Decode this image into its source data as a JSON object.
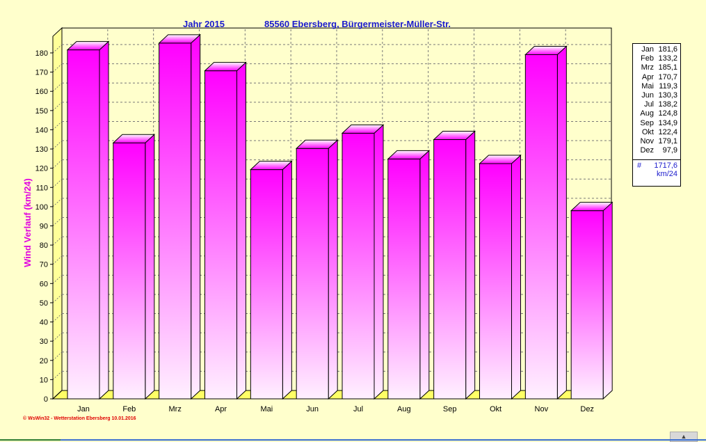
{
  "header": {
    "year_label": "Jahr  2015",
    "station": "85560 Ebersberg, Bürgermeister-Müller-Str."
  },
  "chart_data": {
    "type": "bar",
    "title": "Jahr 2015 — 85560 Ebersberg, Bürgermeister-Müller-Str.",
    "ylabel": "Wind Verlauf  (km/24)",
    "xlabel": "",
    "ylim": [
      0,
      185
    ],
    "yticks": [
      0,
      10,
      20,
      30,
      40,
      50,
      60,
      70,
      80,
      90,
      100,
      110,
      120,
      130,
      140,
      150,
      160,
      170,
      180
    ],
    "categories": [
      "Jan",
      "Feb",
      "Mrz",
      "Apr",
      "Mai",
      "Jun",
      "Jul",
      "Aug",
      "Sep",
      "Okt",
      "Nov",
      "Dez"
    ],
    "values": [
      181.6,
      133.2,
      185.1,
      170.7,
      119.3,
      130.3,
      138.2,
      124.8,
      134.9,
      122.4,
      179.1,
      97.9
    ],
    "grid": true,
    "legend_placement": "right"
  },
  "legend": {
    "rows": [
      {
        "m": "Jan",
        "v": "181,6"
      },
      {
        "m": "Feb",
        "v": "133,2"
      },
      {
        "m": "Mrz",
        "v": "185,1"
      },
      {
        "m": "Apr",
        "v": "170,7"
      },
      {
        "m": "Mai",
        "v": "119,3"
      },
      {
        "m": "Jun",
        "v": "130,3"
      },
      {
        "m": "Jul",
        "v": "138,2"
      },
      {
        "m": "Aug",
        "v": "124,8"
      },
      {
        "m": "Sep",
        "v": "134,9"
      },
      {
        "m": "Okt",
        "v": "122,4"
      },
      {
        "m": "Nov",
        "v": "179,1"
      },
      {
        "m": "Dez",
        "v": "97,9"
      }
    ],
    "sum_symbol": "#",
    "sum": "1717,6",
    "unit": "km/24"
  },
  "footer": "© WsWin32  -  Wetterstation Ebersberg  10.01.2016",
  "scroll_icon": "▲",
  "colors": {
    "bar_top": "#ff00ff",
    "bar_bottom": "#fff0ff",
    "title": "#1a1acc",
    "ylabel": "#e000e0",
    "bg": "#ffffcc"
  }
}
